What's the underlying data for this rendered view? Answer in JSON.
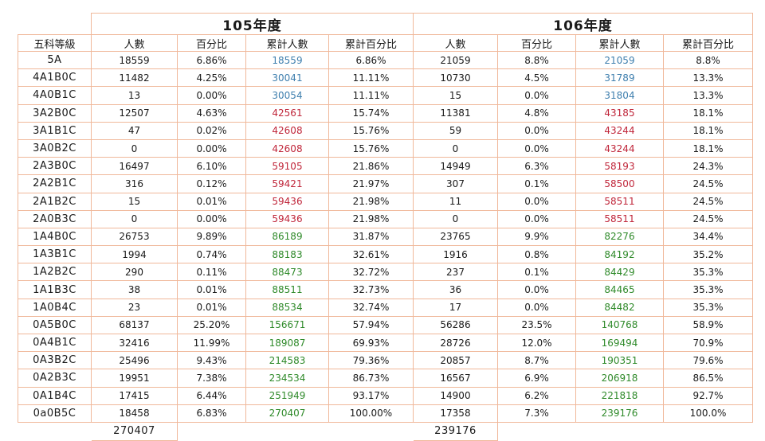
{
  "years": [
    "105年度",
    "106年度"
  ],
  "headers": [
    "五科等級",
    "人數",
    "百分比",
    "累計人數",
    "累計百分比",
    "人數",
    "百分比",
    "累計人數",
    "累計百分比"
  ],
  "colors": {
    "border": "#f0b89a",
    "cumulative_blue": "#3f7fae",
    "cumulative_red": "#c0263a",
    "cumulative_green": "#2f8a2a"
  },
  "rows": [
    {
      "grade": "5A",
      "y105": [
        "18559",
        "6.86%",
        "18559",
        "6.86%"
      ],
      "y106": [
        "21059",
        "8.8%",
        "21059",
        "8.8%"
      ],
      "tone": "blue"
    },
    {
      "grade": "4A1B0C",
      "y105": [
        "11482",
        "4.25%",
        "30041",
        "11.11%"
      ],
      "y106": [
        "10730",
        "4.5%",
        "31789",
        "13.3%"
      ],
      "tone": "blue"
    },
    {
      "grade": "4A0B1C",
      "y105": [
        "13",
        "0.00%",
        "30054",
        "11.11%"
      ],
      "y106": [
        "15",
        "0.0%",
        "31804",
        "13.3%"
      ],
      "tone": "blue"
    },
    {
      "grade": "3A2B0C",
      "y105": [
        "12507",
        "4.63%",
        "42561",
        "15.74%"
      ],
      "y106": [
        "11381",
        "4.8%",
        "43185",
        "18.1%"
      ],
      "tone": "red"
    },
    {
      "grade": "3A1B1C",
      "y105": [
        "47",
        "0.02%",
        "42608",
        "15.76%"
      ],
      "y106": [
        "59",
        "0.0%",
        "43244",
        "18.1%"
      ],
      "tone": "red"
    },
    {
      "grade": "3A0B2C",
      "y105": [
        "0",
        "0.00%",
        "42608",
        "15.76%"
      ],
      "y106": [
        "0",
        "0.0%",
        "43244",
        "18.1%"
      ],
      "tone": "red"
    },
    {
      "grade": "2A3B0C",
      "y105": [
        "16497",
        "6.10%",
        "59105",
        "21.86%"
      ],
      "y106": [
        "14949",
        "6.3%",
        "58193",
        "24.3%"
      ],
      "tone": "red"
    },
    {
      "grade": "2A2B1C",
      "y105": [
        "316",
        "0.12%",
        "59421",
        "21.97%"
      ],
      "y106": [
        "307",
        "0.1%",
        "58500",
        "24.5%"
      ],
      "tone": "red"
    },
    {
      "grade": "2A1B2C",
      "y105": [
        "15",
        "0.01%",
        "59436",
        "21.98%"
      ],
      "y106": [
        "11",
        "0.0%",
        "58511",
        "24.5%"
      ],
      "tone": "red"
    },
    {
      "grade": "2A0B3C",
      "y105": [
        "0",
        "0.00%",
        "59436",
        "21.98%"
      ],
      "y106": [
        "0",
        "0.0%",
        "58511",
        "24.5%"
      ],
      "tone": "red"
    },
    {
      "grade": "1A4B0C",
      "y105": [
        "26753",
        "9.89%",
        "86189",
        "31.87%"
      ],
      "y106": [
        "23765",
        "9.9%",
        "82276",
        "34.4%"
      ],
      "tone": "green"
    },
    {
      "grade": "1A3B1C",
      "y105": [
        "1994",
        "0.74%",
        "88183",
        "32.61%"
      ],
      "y106": [
        "1916",
        "0.8%",
        "84192",
        "35.2%"
      ],
      "tone": "green"
    },
    {
      "grade": "1A2B2C",
      "y105": [
        "290",
        "0.11%",
        "88473",
        "32.72%"
      ],
      "y106": [
        "237",
        "0.1%",
        "84429",
        "35.3%"
      ],
      "tone": "green"
    },
    {
      "grade": "1A1B3C",
      "y105": [
        "38",
        "0.01%",
        "88511",
        "32.73%"
      ],
      "y106": [
        "36",
        "0.0%",
        "84465",
        "35.3%"
      ],
      "tone": "green"
    },
    {
      "grade": "1A0B4C",
      "y105": [
        "23",
        "0.01%",
        "88534",
        "32.74%"
      ],
      "y106": [
        "17",
        "0.0%",
        "84482",
        "35.3%"
      ],
      "tone": "green"
    },
    {
      "grade": "0A5B0C",
      "y105": [
        "68137",
        "25.20%",
        "156671",
        "57.94%"
      ],
      "y106": [
        "56286",
        "23.5%",
        "140768",
        "58.9%"
      ],
      "tone": "green"
    },
    {
      "grade": "0A4B1C",
      "y105": [
        "32416",
        "11.99%",
        "189087",
        "69.93%"
      ],
      "y106": [
        "28726",
        "12.0%",
        "169494",
        "70.9%"
      ],
      "tone": "green"
    },
    {
      "grade": "0A3B2C",
      "y105": [
        "25496",
        "9.43%",
        "214583",
        "79.36%"
      ],
      "y106": [
        "20857",
        "8.7%",
        "190351",
        "79.6%"
      ],
      "tone": "green"
    },
    {
      "grade": "0A2B3C",
      "y105": [
        "19951",
        "7.38%",
        "234534",
        "86.73%"
      ],
      "y106": [
        "16567",
        "6.9%",
        "206918",
        "86.5%"
      ],
      "tone": "green"
    },
    {
      "grade": "0A1B4C",
      "y105": [
        "17415",
        "6.44%",
        "251949",
        "93.17%"
      ],
      "y106": [
        "14900",
        "6.2%",
        "221818",
        "92.7%"
      ],
      "tone": "green"
    },
    {
      "grade": "0a0B5C",
      "y105": [
        "18458",
        "6.83%",
        "270407",
        "100.00%"
      ],
      "y106": [
        "17358",
        "7.3%",
        "239176",
        "100.0%"
      ],
      "tone": "green"
    }
  ],
  "totals": {
    "y105": "270407",
    "y106": "239176"
  }
}
